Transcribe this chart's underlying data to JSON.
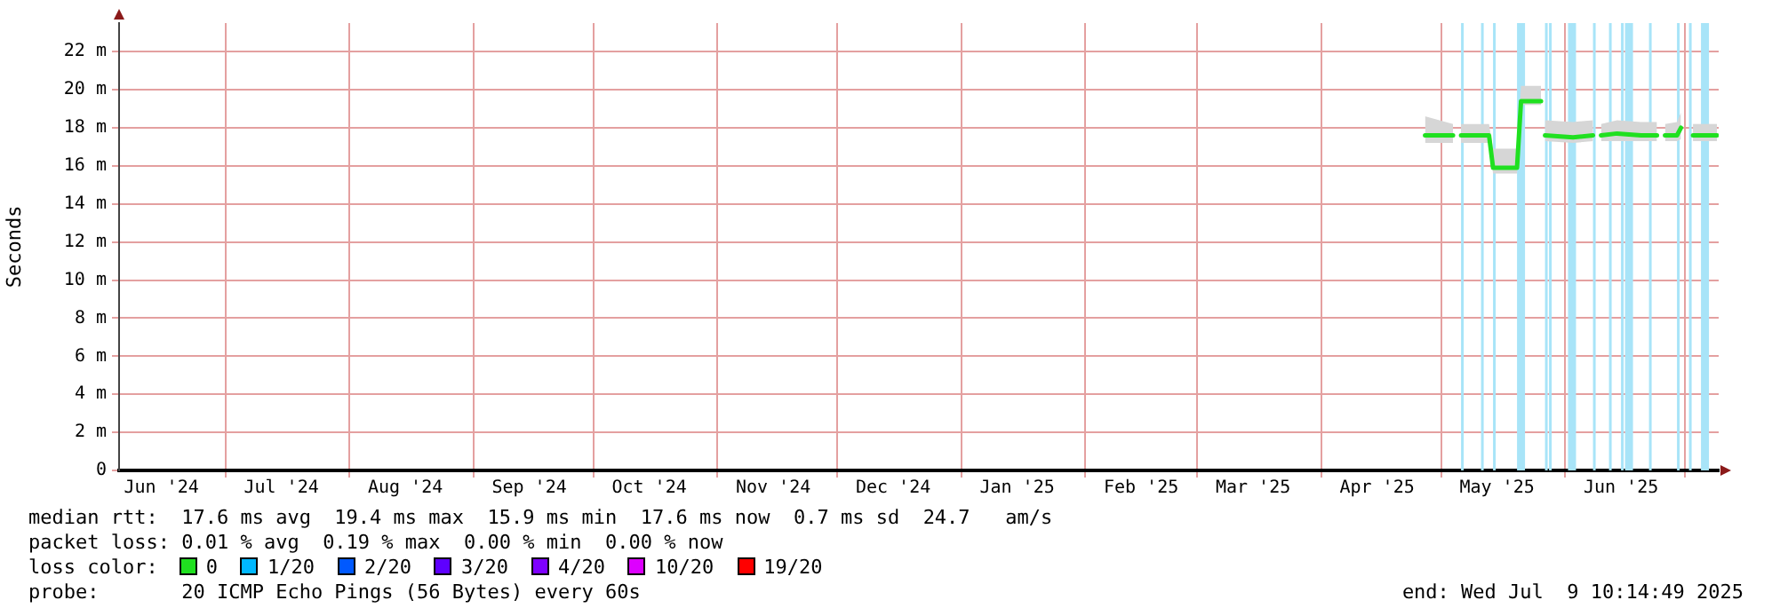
{
  "chart_data": {
    "type": "line",
    "ylabel": "Seconds",
    "legend_title": "loss color:",
    "legend": "bottom",
    "grid": true,
    "marker": "none",
    "line_style": "solid",
    "xlim": [
      "2024-06-04T10:14",
      "2025-07-09T10:14"
    ],
    "xticks": [
      {
        "value": "2024-06-15",
        "label": "Jun '24"
      },
      {
        "value": "2024-07-01",
        "label": null
      },
      {
        "value": "2024-07-15",
        "label": "Jul '24"
      },
      {
        "value": "2024-08-01",
        "label": null
      },
      {
        "value": "2024-08-15",
        "label": "Aug '24"
      },
      {
        "value": "2024-09-01",
        "label": null
      },
      {
        "value": "2024-09-15",
        "label": "Sep '24"
      },
      {
        "value": "2024-10-01",
        "label": null
      },
      {
        "value": "2024-10-15",
        "label": "Oct '24"
      },
      {
        "value": "2024-11-01",
        "label": null
      },
      {
        "value": "2024-11-15",
        "label": "Nov '24"
      },
      {
        "value": "2024-12-01",
        "label": null
      },
      {
        "value": "2024-12-15",
        "label": "Dec '24"
      },
      {
        "value": "2025-01-01",
        "label": null
      },
      {
        "value": "2025-01-15",
        "label": "Jan '25"
      },
      {
        "value": "2025-02-01",
        "label": null
      },
      {
        "value": "2025-02-15",
        "label": "Feb '25"
      },
      {
        "value": "2025-03-01",
        "label": null
      },
      {
        "value": "2025-03-15",
        "label": "Mar '25"
      },
      {
        "value": "2025-04-01",
        "label": null
      },
      {
        "value": "2025-04-15",
        "label": "Apr '25"
      },
      {
        "value": "2025-05-01",
        "label": null
      },
      {
        "value": "2025-05-15",
        "label": "May '25"
      },
      {
        "value": "2025-06-01",
        "label": null
      },
      {
        "value": "2025-06-15",
        "label": "Jun '25"
      },
      {
        "value": "2025-07-01",
        "label": null
      }
    ],
    "ylim": [
      0,
      23.5
    ],
    "yticks": [
      0,
      {
        "value": 2,
        "label": "2 m"
      },
      {
        "value": 4,
        "label": "4 m"
      },
      {
        "value": 6,
        "label": "6 m"
      },
      {
        "value": 8,
        "label": "8 m"
      },
      {
        "value": 10,
        "label": "10 m"
      },
      {
        "value": 12,
        "label": "12 m"
      },
      {
        "value": 14,
        "label": "14 m"
      },
      {
        "value": 16,
        "label": "16 m"
      },
      {
        "value": 18,
        "label": "18 m"
      },
      {
        "value": 20,
        "label": "20 m"
      },
      {
        "value": 22,
        "label": "22 m"
      }
    ],
    "x": [
      "2025-04-27",
      "2025-05-04",
      "2025-05-05",
      "2025-05-06",
      "2025-05-13",
      "2025-05-14",
      "2025-05-20",
      "2025-05-21",
      "2025-05-26",
      "2025-05-26T12:00",
      "2025-05-27",
      "2025-06-03",
      "2025-06-08",
      "2025-06-09",
      "2025-06-10",
      "2025-06-14",
      "2025-06-20",
      "2025-06-24",
      "2025-06-25",
      "2025-06-26",
      "2025-06-29",
      "2025-06-30",
      "2025-07-01",
      "2025-07-03",
      "2025-07-09"
    ],
    "series": [
      {
        "name": "0",
        "color": "#20e020",
        "values": [
          17.6,
          17.6,
          null,
          17.6,
          17.6,
          15.9,
          15.9,
          19.4,
          19.4,
          null,
          17.6,
          17.5,
          17.6,
          null,
          17.6,
          17.7,
          17.6,
          17.6,
          null,
          17.6,
          17.6,
          18.0,
          null,
          17.6,
          17.6
        ],
        "lower": [
          17.2,
          17.2,
          null,
          17.2,
          17.2,
          15.6,
          15.6,
          19.2,
          19.2,
          null,
          17.3,
          17.2,
          17.3,
          null,
          17.3,
          17.3,
          17.3,
          17.3,
          null,
          17.3,
          17.3,
          17.4,
          null,
          17.3,
          17.3
        ],
        "upper": [
          18.6,
          18.2,
          null,
          18.2,
          18.2,
          16.9,
          16.9,
          20.2,
          20.2,
          null,
          18.4,
          18.3,
          18.4,
          null,
          18.2,
          18.4,
          18.3,
          18.3,
          null,
          18.2,
          18.3,
          18.8,
          null,
          18.2,
          18.2
        ]
      },
      {
        "name": "1/20",
        "color": "#00b8ff",
        "values": [
          null,
          null,
          null,
          null,
          null,
          null,
          null,
          null,
          null,
          null,
          null,
          null,
          null,
          null,
          null,
          null,
          null,
          null,
          null,
          null,
          null,
          null,
          null,
          null,
          null
        ]
      },
      {
        "name": "2/20",
        "color": "#0059ff",
        "values": [
          null,
          null,
          null,
          null,
          null,
          null,
          null,
          null,
          null,
          null,
          null,
          null,
          null,
          null,
          null,
          null,
          null,
          null,
          null,
          null,
          null,
          null,
          null,
          null,
          null
        ]
      },
      {
        "name": "3/20",
        "color": "#5e00ff",
        "values": [
          null,
          null,
          null,
          null,
          null,
          null,
          null,
          null,
          null,
          null,
          null,
          null,
          null,
          null,
          null,
          null,
          null,
          null,
          null,
          null,
          null,
          null,
          null,
          null,
          null
        ]
      },
      {
        "name": "4/20",
        "color": "#7e00ff",
        "values": [
          null,
          null,
          null,
          null,
          null,
          null,
          null,
          null,
          null,
          null,
          null,
          null,
          null,
          null,
          null,
          null,
          null,
          null,
          null,
          null,
          null,
          null,
          null,
          null,
          null
        ]
      },
      {
        "name": "10/20",
        "color": "#dd00ff",
        "values": [
          null,
          null,
          null,
          null,
          null,
          null,
          null,
          null,
          null,
          null,
          null,
          null,
          null,
          null,
          null,
          null,
          null,
          null,
          null,
          null,
          null,
          null,
          null,
          null,
          null
        ]
      },
      {
        "name": "19/20",
        "color": "#ff0000",
        "values": [
          null,
          null,
          null,
          null,
          null,
          null,
          null,
          null,
          null,
          null,
          null,
          null,
          null,
          null,
          null,
          null,
          null,
          null,
          null,
          null,
          null,
          null,
          null,
          null,
          null
        ]
      }
    ],
    "bands": [
      {
        "axis": "x",
        "from": "2025-05-06",
        "to": "2025-05-06T12:00",
        "color": "#a8e4f8"
      },
      {
        "axis": "x",
        "from": "2025-05-11",
        "to": "2025-05-11T12:00",
        "color": "#a8e4f8"
      },
      {
        "axis": "x",
        "from": "2025-05-14",
        "to": "2025-05-14T12:00",
        "color": "#a8e4f8"
      },
      {
        "axis": "x",
        "from": "2025-05-20",
        "to": "2025-05-22",
        "color": "#a8e4f8"
      },
      {
        "axis": "x",
        "from": "2025-05-27",
        "to": "2025-05-27T12:00",
        "color": "#a8e4f8"
      },
      {
        "axis": "x",
        "from": "2025-05-28",
        "to": "2025-05-28T12:00",
        "color": "#a8e4f8"
      },
      {
        "axis": "x",
        "from": "2025-06-01T18:00",
        "to": "2025-06-03T18:00",
        "color": "#a8e4f8"
      },
      {
        "axis": "x",
        "from": "2025-06-08",
        "to": "2025-06-08T12:00",
        "color": "#a8e4f8"
      },
      {
        "axis": "x",
        "from": "2025-06-12",
        "to": "2025-06-12T12:00",
        "color": "#a8e4f8"
      },
      {
        "axis": "x",
        "from": "2025-06-15",
        "to": "2025-06-15T12:00",
        "color": "#a8e4f8"
      },
      {
        "axis": "x",
        "from": "2025-06-16",
        "to": "2025-06-18",
        "color": "#a8e4f8"
      },
      {
        "axis": "x",
        "from": "2025-06-22",
        "to": "2025-06-22T12:00",
        "color": "#a8e4f8"
      },
      {
        "axis": "x",
        "from": "2025-06-29",
        "to": "2025-06-29T12:00",
        "color": "#a8e4f8"
      },
      {
        "axis": "x",
        "from": "2025-07-02",
        "to": "2025-07-02T12:00",
        "color": "#a8e4f8"
      },
      {
        "axis": "x",
        "from": "2025-07-05",
        "to": "2025-07-07",
        "color": "#a8e4f8"
      }
    ],
    "annotations": [
      "median rtt:  17.6 ms avg  19.4 ms max  15.9 ms min  17.6 ms now  0.7 ms sd  24.7   am/s",
      "packet loss: 0.01 % avg  0.19 % max  0.00 % min  0.00 % now",
      "probe:       20 ICMP Echo Pings (56 Bytes) every 60s",
      "end: Wed Jul  9 10:14:49 2025"
    ]
  }
}
